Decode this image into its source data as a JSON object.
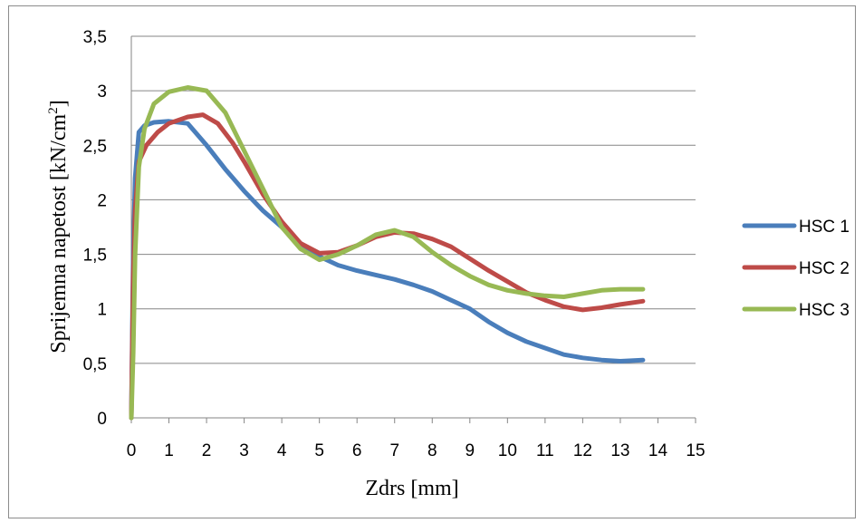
{
  "chart_data": {
    "type": "line",
    "xlabel": "Zdrs [mm]",
    "ylabel": "Sprijemna napetost [kN/cm",
    "ylabel_sup": "2",
    "ylabel_end": "]",
    "xlim": [
      0,
      15
    ],
    "ylim": [
      0,
      3.5
    ],
    "x_ticks": [
      "0",
      "1",
      "2",
      "3",
      "4",
      "5",
      "6",
      "7",
      "8",
      "9",
      "10",
      "11",
      "12",
      "13",
      "14",
      "15"
    ],
    "y_ticks": [
      "0",
      "0,5",
      "1",
      "1,5",
      "2",
      "2,5",
      "3",
      "3,5"
    ],
    "grid": "horizontal",
    "legend_position": "right",
    "series": [
      {
        "name": "HSC 1",
        "color": "#4a7ebb",
        "points": [
          [
            0,
            0
          ],
          [
            0.05,
            1.5
          ],
          [
            0.1,
            2.2
          ],
          [
            0.2,
            2.62
          ],
          [
            0.35,
            2.68
          ],
          [
            0.6,
            2.71
          ],
          [
            1,
            2.72
          ],
          [
            1.5,
            2.7
          ],
          [
            2,
            2.5
          ],
          [
            2.5,
            2.28
          ],
          [
            3,
            2.08
          ],
          [
            3.5,
            1.9
          ],
          [
            4,
            1.75
          ],
          [
            4.5,
            1.6
          ],
          [
            5,
            1.48
          ],
          [
            5.5,
            1.4
          ],
          [
            6,
            1.35
          ],
          [
            6.5,
            1.31
          ],
          [
            7,
            1.27
          ],
          [
            7.5,
            1.22
          ],
          [
            8,
            1.16
          ],
          [
            8.5,
            1.08
          ],
          [
            9,
            1.0
          ],
          [
            9.5,
            0.88
          ],
          [
            10,
            0.78
          ],
          [
            10.5,
            0.7
          ],
          [
            11,
            0.64
          ],
          [
            11.5,
            0.58
          ],
          [
            12,
            0.55
          ],
          [
            12.5,
            0.53
          ],
          [
            13,
            0.52
          ],
          [
            13.6,
            0.53
          ]
        ]
      },
      {
        "name": "HSC 2",
        "color": "#be4b48",
        "points": [
          [
            0,
            0
          ],
          [
            0.05,
            1.3
          ],
          [
            0.1,
            1.9
          ],
          [
            0.2,
            2.35
          ],
          [
            0.4,
            2.5
          ],
          [
            0.7,
            2.62
          ],
          [
            1,
            2.7
          ],
          [
            1.5,
            2.76
          ],
          [
            1.9,
            2.78
          ],
          [
            2.3,
            2.7
          ],
          [
            2.7,
            2.52
          ],
          [
            3,
            2.35
          ],
          [
            3.5,
            2.05
          ],
          [
            4,
            1.8
          ],
          [
            4.5,
            1.6
          ],
          [
            5,
            1.51
          ],
          [
            5.5,
            1.52
          ],
          [
            6,
            1.58
          ],
          [
            6.5,
            1.66
          ],
          [
            7,
            1.7
          ],
          [
            7.5,
            1.69
          ],
          [
            8,
            1.64
          ],
          [
            8.5,
            1.57
          ],
          [
            9,
            1.46
          ],
          [
            9.5,
            1.35
          ],
          [
            10,
            1.25
          ],
          [
            10.5,
            1.15
          ],
          [
            11,
            1.08
          ],
          [
            11.5,
            1.02
          ],
          [
            12,
            0.99
          ],
          [
            12.5,
            1.01
          ],
          [
            13,
            1.04
          ],
          [
            13.6,
            1.07
          ]
        ]
      },
      {
        "name": "HSC 3",
        "color": "#98b954",
        "points": [
          [
            0,
            0
          ],
          [
            0.05,
            0.6
          ],
          [
            0.1,
            1.5
          ],
          [
            0.2,
            2.3
          ],
          [
            0.35,
            2.65
          ],
          [
            0.6,
            2.88
          ],
          [
            1,
            2.99
          ],
          [
            1.5,
            3.03
          ],
          [
            2,
            3.0
          ],
          [
            2.5,
            2.8
          ],
          [
            3,
            2.45
          ],
          [
            3.5,
            2.1
          ],
          [
            4,
            1.75
          ],
          [
            4.5,
            1.55
          ],
          [
            5,
            1.45
          ],
          [
            5.5,
            1.5
          ],
          [
            6,
            1.58
          ],
          [
            6.5,
            1.68
          ],
          [
            7,
            1.72
          ],
          [
            7.5,
            1.66
          ],
          [
            8,
            1.52
          ],
          [
            8.5,
            1.4
          ],
          [
            9,
            1.3
          ],
          [
            9.5,
            1.22
          ],
          [
            10,
            1.17
          ],
          [
            10.5,
            1.14
          ],
          [
            11,
            1.12
          ],
          [
            11.5,
            1.11
          ],
          [
            12,
            1.14
          ],
          [
            12.5,
            1.17
          ],
          [
            13,
            1.18
          ],
          [
            13.6,
            1.18
          ]
        ]
      }
    ]
  }
}
